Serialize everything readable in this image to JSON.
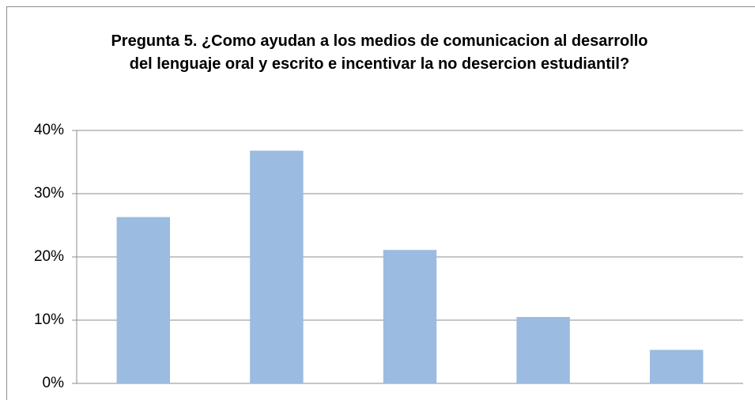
{
  "chart_data": {
    "type": "bar",
    "title": "Pregunta 5. ¿Como ayudan a los medios de comunicacion al desarrollo del lenguaje oral y escrito e incentivar la no desercion estudiantil?",
    "categories": [
      null,
      null,
      null,
      null,
      null
    ],
    "values": [
      26.3,
      36.8,
      21.1,
      10.5,
      5.3
    ],
    "color": "#9bbbe0",
    "ylim": [
      0,
      40
    ],
    "yticks": [
      {
        "value": 0,
        "label": "0%"
      },
      {
        "value": 10,
        "label": "10%"
      },
      {
        "value": 20,
        "label": "20%"
      },
      {
        "value": 30,
        "label": "30%"
      },
      {
        "value": 40,
        "label": "40%"
      }
    ],
    "grid": true
  }
}
